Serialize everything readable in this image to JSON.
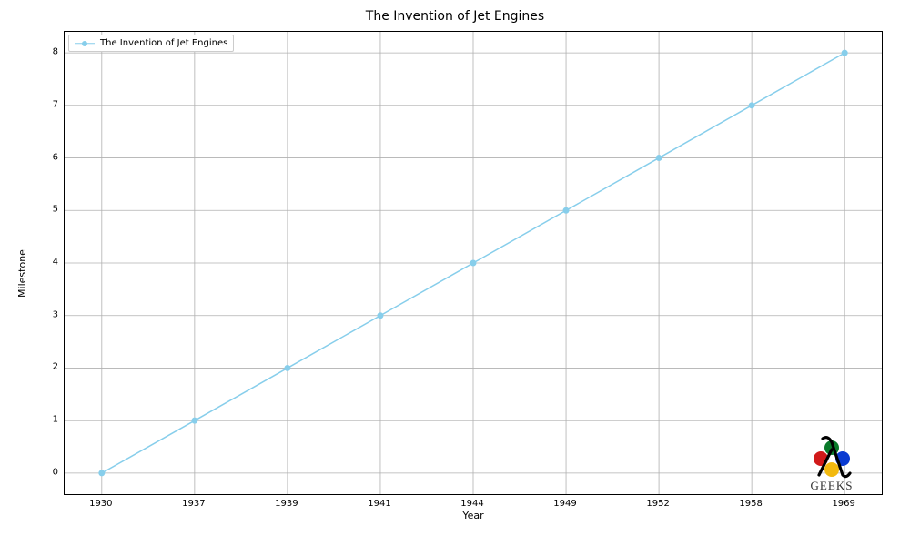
{
  "chart": {
    "type": "line",
    "title": "The Invention of Jet Engines",
    "title_fontsize": 14,
    "xlabel": "Year",
    "ylabel": "Milestone",
    "label_fontsize": 11,
    "tick_fontsize": 10,
    "background_color": "#ffffff",
    "spine_color": "#000000",
    "grid": true,
    "grid_color": "#b0b0b0",
    "line_color": "#87ceeb",
    "line_width": 1.5,
    "marker_style": "circle",
    "marker_size": 6,
    "marker_color": "#87ceeb",
    "x_categories": [
      "1930",
      "1937",
      "1939",
      "1941",
      "1944",
      "1949",
      "1952",
      "1958",
      "1969"
    ],
    "y_values": [
      0,
      1,
      2,
      3,
      4,
      5,
      6,
      7,
      8
    ],
    "ylim": [
      -0.4,
      8.4
    ],
    "ytick_step": 1,
    "yticks": [
      0,
      1,
      2,
      3,
      4,
      5,
      6,
      7,
      8
    ],
    "x_index_range": [
      -0.4,
      8.4
    ],
    "legend": {
      "position": "upper-left",
      "label": "The Invention of Jet Engines",
      "border_color": "#cccccc",
      "bg_color": "#ffffff"
    },
    "watermark": {
      "text": "GEEKS",
      "lambda_color": "#000000",
      "circle_colors": {
        "top": "#0a7a2a",
        "right": "#0a3bd1",
        "bottom": "#f2b90f",
        "left": "#d11a1a"
      }
    }
  }
}
